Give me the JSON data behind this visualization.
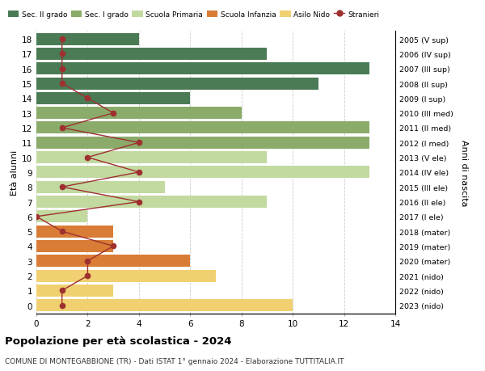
{
  "ages": [
    18,
    17,
    16,
    15,
    14,
    13,
    12,
    11,
    10,
    9,
    8,
    7,
    6,
    5,
    4,
    3,
    2,
    1,
    0
  ],
  "years": [
    "2005 (V sup)",
    "2006 (IV sup)",
    "2007 (III sup)",
    "2008 (II sup)",
    "2009 (I sup)",
    "2010 (III med)",
    "2011 (II med)",
    "2012 (I med)",
    "2013 (V ele)",
    "2014 (IV ele)",
    "2015 (III ele)",
    "2016 (II ele)",
    "2017 (I ele)",
    "2018 (mater)",
    "2019 (mater)",
    "2020 (mater)",
    "2021 (nido)",
    "2022 (nido)",
    "2023 (nido)"
  ],
  "bar_values": [
    4,
    9,
    13,
    11,
    6,
    8,
    13,
    13,
    9,
    13,
    5,
    9,
    2,
    3,
    3,
    6,
    7,
    3,
    10
  ],
  "bar_colors": [
    "#4a7b55",
    "#4a7b55",
    "#4a7b55",
    "#4a7b55",
    "#4a7b55",
    "#8aab6a",
    "#8aab6a",
    "#8aab6a",
    "#c2d9a0",
    "#c2d9a0",
    "#c2d9a0",
    "#c2d9a0",
    "#c2d9a0",
    "#d97c35",
    "#d97c35",
    "#d97c35",
    "#f0d070",
    "#f0d070",
    "#f0d070"
  ],
  "stranieri_values": [
    1,
    1,
    1,
    1,
    2,
    3,
    1,
    4,
    2,
    4,
    1,
    4,
    0,
    1,
    3,
    2,
    2,
    1,
    1
  ],
  "stranieri_color": "#9e3030",
  "legend_labels": [
    "Sec. II grado",
    "Sec. I grado",
    "Scuola Primaria",
    "Scuola Infanzia",
    "Asilo Nido",
    "Stranieri"
  ],
  "legend_colors": [
    "#4a7b55",
    "#8aab6a",
    "#c2d9a0",
    "#d97c35",
    "#f0d070",
    "#9e3030"
  ],
  "ylabel_left": "Età alunni",
  "ylabel_right": "Anni di nascita",
  "title": "Popolazione per età scolastica - 2024",
  "subtitle": "COMUNE DI MONTEGABBIONE (TR) - Dati ISTAT 1° gennaio 2024 - Elaborazione TUTTITALIA.IT",
  "xlim": [
    0,
    14
  ],
  "xticks": [
    0,
    2,
    4,
    6,
    8,
    10,
    12,
    14
  ],
  "background_color": "#ffffff",
  "grid_color": "#cccccc"
}
